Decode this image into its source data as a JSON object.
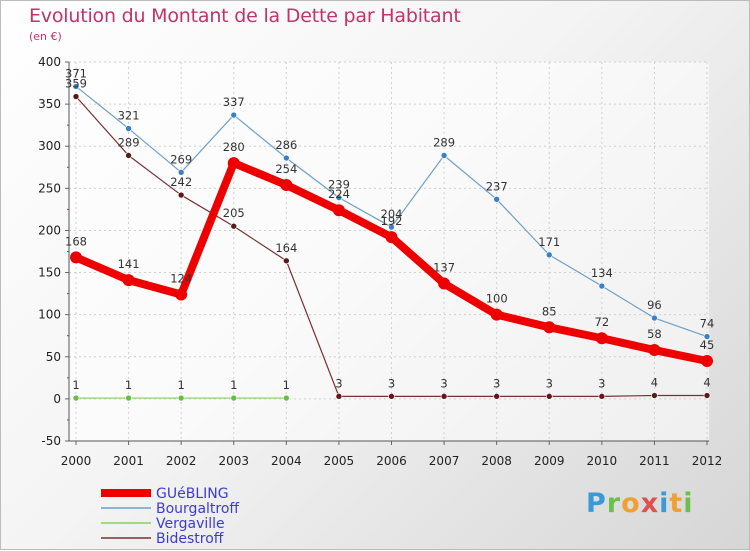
{
  "chart_data": {
    "type": "line",
    "title": "Evolution du Montant de la Dette par Habitant",
    "subtitle": "(en €)",
    "x": [
      "2000",
      "2001",
      "2002",
      "2003",
      "2004",
      "2005",
      "2006",
      "2007",
      "2008",
      "2009",
      "2010",
      "2011",
      "2012"
    ],
    "ylim": [
      -50,
      400
    ],
    "yticks": [
      -50,
      0,
      50,
      100,
      150,
      200,
      250,
      300,
      350,
      400
    ],
    "grid": true,
    "legend_position": "bottom-left",
    "series": [
      {
        "name": "Bourgaltroff",
        "color": "#6ea0c8",
        "point_color": "#3a80c4",
        "width": 1.2,
        "radius": 3,
        "values": [
          371,
          321,
          269,
          337,
          286,
          239,
          204,
          289,
          237,
          171,
          134,
          96,
          74
        ],
        "labels_above": true
      },
      {
        "name": "Vergaville",
        "color": "#88d060",
        "point_color": "#66c040",
        "width": 1.2,
        "radius": 3,
        "values": [
          1,
          1,
          1,
          1,
          1,
          null,
          null,
          null,
          null,
          null,
          null,
          null,
          null
        ],
        "labels_above": false
      },
      {
        "name": "Bidestroff",
        "color": "#7a3030",
        "point_color": "#5a1a1a",
        "width": 1.2,
        "radius": 3,
        "values": [
          359,
          289,
          242,
          205,
          164,
          3,
          3,
          3,
          3,
          3,
          3,
          4,
          4
        ],
        "labels_above": true
      },
      {
        "name": "GUéBLING",
        "color": "#ee0000",
        "point_color": "#ee0000",
        "width": 8,
        "radius": 6,
        "values": [
          168,
          141,
          124,
          280,
          254,
          224,
          192,
          137,
          100,
          85,
          72,
          58,
          45
        ],
        "labels_above": true
      }
    ],
    "legend_order": [
      "GUéBLING",
      "Bourgaltroff",
      "Vergaville",
      "Bidestroff"
    ]
  },
  "logo": {
    "letters": [
      "P",
      "r",
      "o",
      "x",
      "i",
      "t",
      "i"
    ],
    "colors": [
      "#3a9ad9",
      "#6cc04a",
      "#f0a030",
      "#e05050",
      "#3a9ad9",
      "#f0a030",
      "#6cc04a"
    ]
  }
}
